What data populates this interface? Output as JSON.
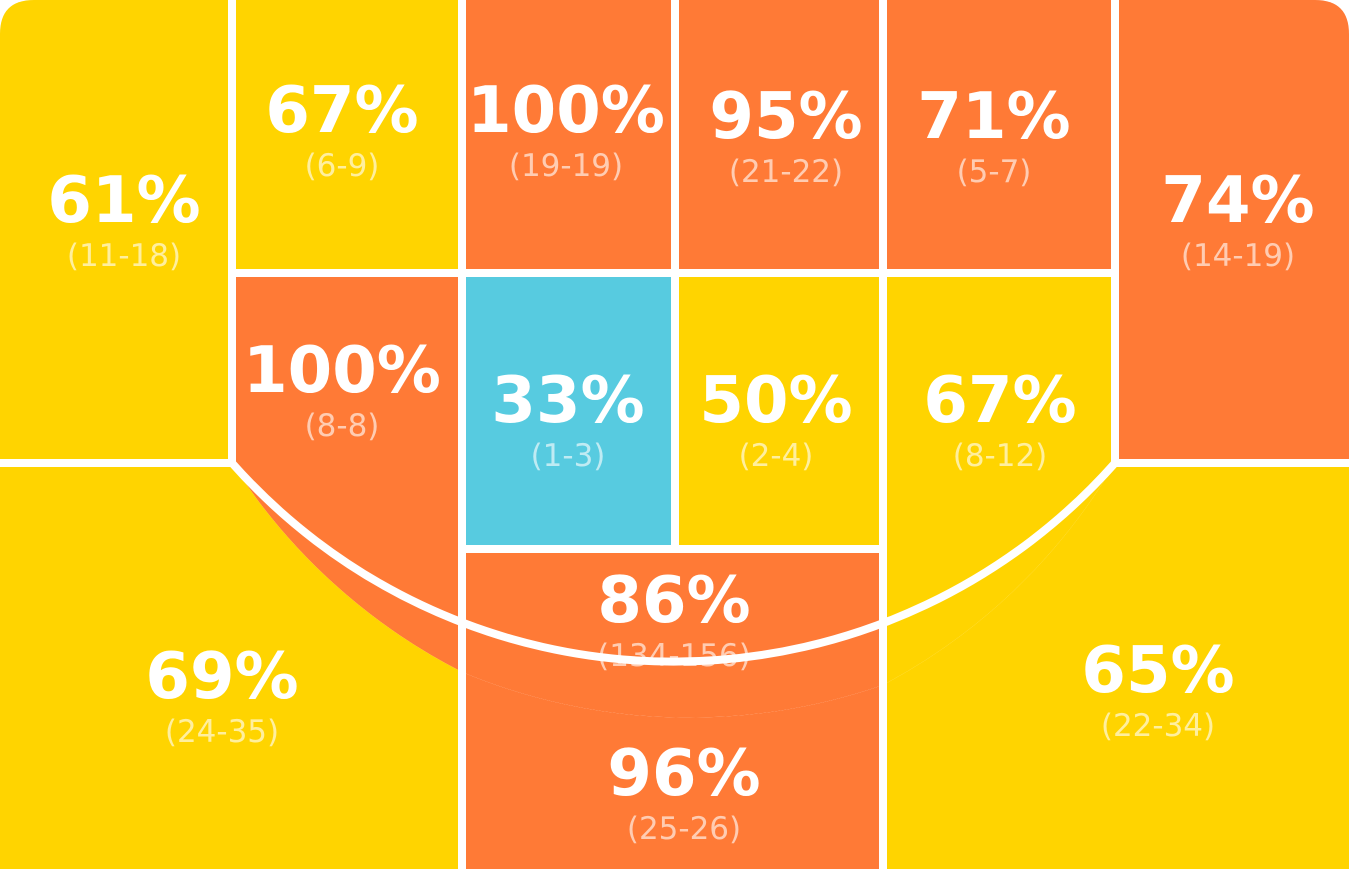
{
  "colors": {
    "hot": "#FF7A36",
    "warm": "#FFD400",
    "cold": "#57CBE0",
    "line": "#ffffff"
  },
  "chart_data": {
    "type": "heatmap",
    "title": "",
    "zones": [
      {
        "id": "left-corner",
        "pct": "61%",
        "count": "(11-18)",
        "made": 11,
        "attempts": 18,
        "level": "warm"
      },
      {
        "id": "left-baseline-mid",
        "pct": "67%",
        "count": "(6-9)",
        "made": 6,
        "attempts": 9,
        "level": "warm"
      },
      {
        "id": "left-block",
        "pct": "100%",
        "count": "(19-19)",
        "made": 19,
        "attempts": 19,
        "level": "hot"
      },
      {
        "id": "right-block",
        "pct": "95%",
        "count": "(21-22)",
        "made": 21,
        "attempts": 22,
        "level": "hot"
      },
      {
        "id": "right-baseline-mid",
        "pct": "71%",
        "count": "(5-7)",
        "made": 5,
        "attempts": 7,
        "level": "hot"
      },
      {
        "id": "right-corner",
        "pct": "74%",
        "count": "(14-19)",
        "made": 14,
        "attempts": 19,
        "level": "hot"
      },
      {
        "id": "left-elbow-mid",
        "pct": "100%",
        "count": "(8-8)",
        "made": 8,
        "attempts": 8,
        "level": "hot"
      },
      {
        "id": "left-paint",
        "pct": "33%",
        "count": "(1-3)",
        "made": 1,
        "attempts": 3,
        "level": "cold"
      },
      {
        "id": "right-paint",
        "pct": "50%",
        "count": "(2-4)",
        "made": 2,
        "attempts": 4,
        "level": "warm"
      },
      {
        "id": "right-elbow-mid",
        "pct": "67%",
        "count": "(8-12)",
        "made": 8,
        "attempts": 12,
        "level": "warm"
      },
      {
        "id": "top-key",
        "pct": "86%",
        "count": "(134-156)",
        "made": 134,
        "attempts": 156,
        "level": "hot"
      },
      {
        "id": "left-wing-three",
        "pct": "69%",
        "count": "(24-35)",
        "made": 24,
        "attempts": 35,
        "level": "warm"
      },
      {
        "id": "top-three",
        "pct": "96%",
        "count": "(25-26)",
        "made": 25,
        "attempts": 26,
        "level": "hot"
      },
      {
        "id": "right-wing-three",
        "pct": "65%",
        "count": "(22-34)",
        "made": 22,
        "attempts": 34,
        "level": "warm"
      }
    ]
  }
}
